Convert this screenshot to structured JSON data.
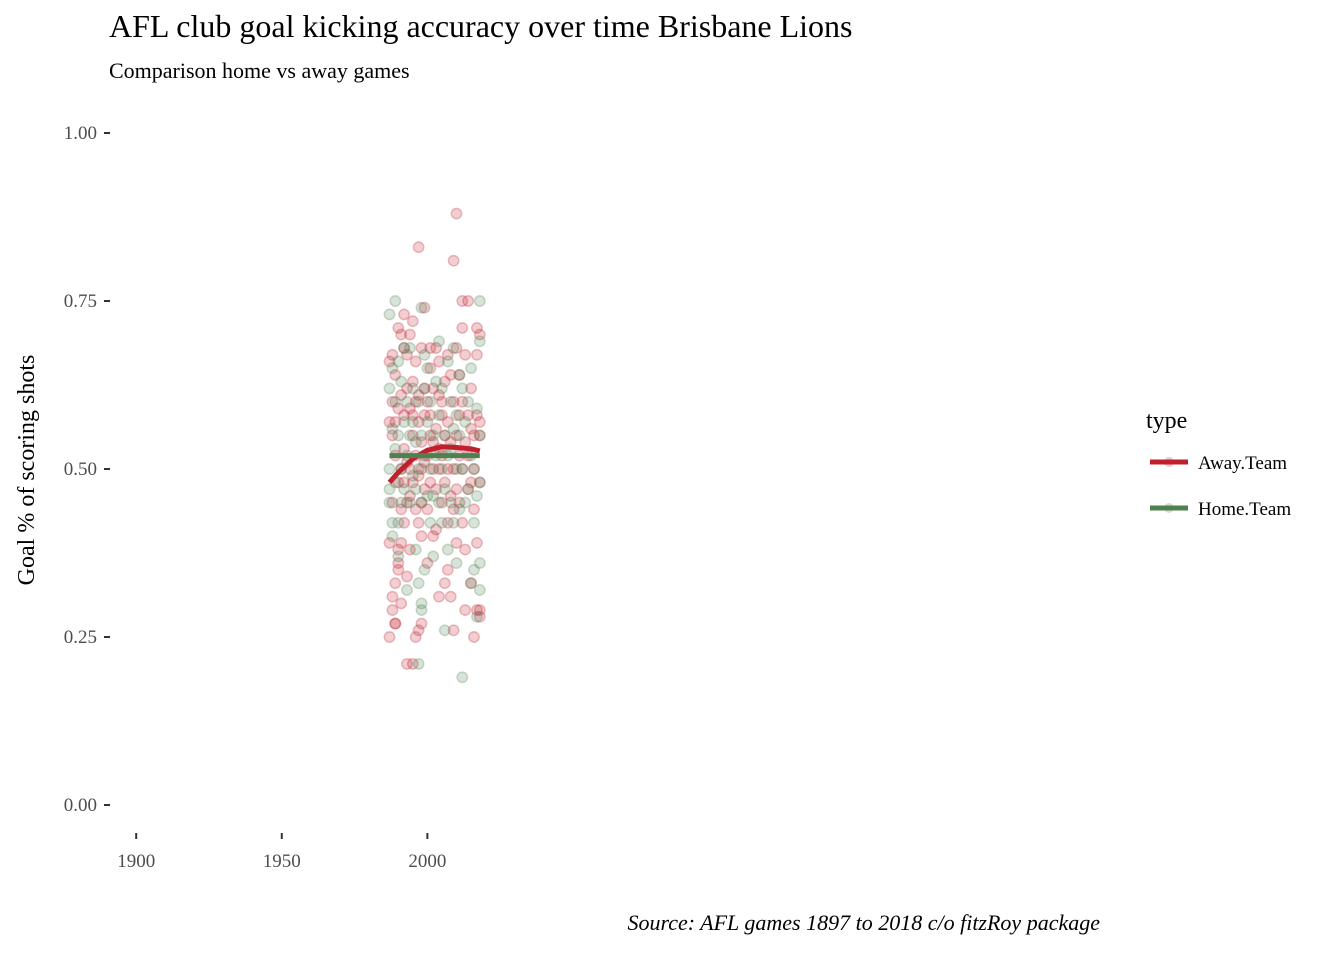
{
  "chart_data": {
    "type": "scatter",
    "title": "AFL club goal kicking accuracy over time Brisbane Lions",
    "subtitle": "Comparison home vs away games",
    "caption": "Source: AFL games 1897 to 2018 c/o fitzRoy package",
    "xlabel": "",
    "ylabel": "Goal % of scoring shots",
    "xlim": [
      1891,
      2242
    ],
    "ylim": [
      0,
      1
    ],
    "x_ticks": [
      1900,
      1950,
      2000
    ],
    "y_ticks": [
      {
        "value": 0.0,
        "label": "0.00"
      },
      {
        "value": 0.25,
        "label": "0.25"
      },
      {
        "value": 0.5,
        "label": "0.50"
      },
      {
        "value": 0.75,
        "label": "0.75"
      },
      {
        "value": 1.0,
        "label": "1.00"
      }
    ],
    "grid": false,
    "legend": {
      "title": "type",
      "position": "right"
    },
    "colors": {
      "away": "#c0202d",
      "home": "#4e8050",
      "tick": "#333333",
      "tick_text": "#4d4d4d"
    },
    "series": [
      {
        "name": "Away.Team",
        "color": "#c0202d",
        "points": [
          [
            1987,
            0.25
          ],
          [
            1987,
            0.39
          ],
          [
            1987,
            0.57
          ],
          [
            1987,
            0.66
          ],
          [
            1988,
            0.67
          ],
          [
            1988,
            0.31
          ],
          [
            1988,
            0.29
          ],
          [
            1988,
            0.6
          ],
          [
            1988,
            0.55
          ],
          [
            1988,
            0.45
          ],
          [
            1989,
            0.27
          ],
          [
            1989,
            0.33
          ],
          [
            1989,
            0.52
          ],
          [
            1989,
            0.64
          ],
          [
            1989,
            0.57
          ],
          [
            1989,
            0.27
          ],
          [
            1990,
            0.71
          ],
          [
            1990,
            0.48
          ],
          [
            1990,
            0.38
          ],
          [
            1990,
            0.59
          ],
          [
            1990,
            0.35
          ],
          [
            1990,
            0.36
          ],
          [
            1991,
            0.7
          ],
          [
            1991,
            0.5
          ],
          [
            1991,
            0.44
          ],
          [
            1991,
            0.61
          ],
          [
            1991,
            0.39
          ],
          [
            1991,
            0.3
          ],
          [
            1992,
            0.68
          ],
          [
            1992,
            0.58
          ],
          [
            1992,
            0.48
          ],
          [
            1992,
            0.42
          ],
          [
            1992,
            0.73
          ],
          [
            1992,
            0.53
          ],
          [
            1993,
            0.21
          ],
          [
            1993,
            0.62
          ],
          [
            1993,
            0.51
          ],
          [
            1993,
            0.45
          ],
          [
            1993,
            0.34
          ],
          [
            1993,
            0.67
          ],
          [
            1994,
            0.59
          ],
          [
            1994,
            0.5
          ],
          [
            1994,
            0.38
          ],
          [
            1994,
            0.7
          ],
          [
            1994,
            0.46
          ],
          [
            1995,
            0.72
          ],
          [
            1995,
            0.63
          ],
          [
            1995,
            0.55
          ],
          [
            1995,
            0.48
          ],
          [
            1995,
            0.21
          ],
          [
            1995,
            0.58
          ],
          [
            1996,
            0.25
          ],
          [
            1996,
            0.52
          ],
          [
            1996,
            0.66
          ],
          [
            1996,
            0.44
          ],
          [
            1996,
            0.6
          ],
          [
            1997,
            0.83
          ],
          [
            1997,
            0.26
          ],
          [
            1997,
            0.57
          ],
          [
            1997,
            0.49
          ],
          [
            1997,
            0.42
          ],
          [
            1997,
            0.61
          ],
          [
            1998,
            0.27
          ],
          [
            1998,
            0.68
          ],
          [
            1998,
            0.5
          ],
          [
            1998,
            0.54
          ],
          [
            1998,
            0.4
          ],
          [
            1998,
            0.45
          ],
          [
            1999,
            0.74
          ],
          [
            1999,
            0.62
          ],
          [
            1999,
            0.51
          ],
          [
            1999,
            0.47
          ],
          [
            1999,
            0.58
          ],
          [
            2000,
            0.6
          ],
          [
            2000,
            0.52
          ],
          [
            2000,
            0.44
          ],
          [
            2000,
            0.36
          ],
          [
            2001,
            0.65
          ],
          [
            2001,
            0.55
          ],
          [
            2001,
            0.48
          ],
          [
            2001,
            0.58
          ],
          [
            2001,
            0.68
          ],
          [
            2002,
            0.54
          ],
          [
            2002,
            0.4
          ],
          [
            2002,
            0.5
          ],
          [
            2002,
            0.62
          ],
          [
            2003,
            0.68
          ],
          [
            2003,
            0.56
          ],
          [
            2003,
            0.47
          ],
          [
            2003,
            0.41
          ],
          [
            2004,
            0.61
          ],
          [
            2004,
            0.5
          ],
          [
            2004,
            0.53
          ],
          [
            2004,
            0.31
          ],
          [
            2004,
            0.66
          ],
          [
            2005,
            0.58
          ],
          [
            2005,
            0.45
          ],
          [
            2005,
            0.52
          ],
          [
            2005,
            0.6
          ],
          [
            2006,
            0.63
          ],
          [
            2006,
            0.33
          ],
          [
            2006,
            0.55
          ],
          [
            2006,
            0.48
          ],
          [
            2007,
            0.35
          ],
          [
            2007,
            0.5
          ],
          [
            2007,
            0.57
          ],
          [
            2007,
            0.67
          ],
          [
            2007,
            0.42
          ],
          [
            2008,
            0.64
          ],
          [
            2008,
            0.31
          ],
          [
            2008,
            0.54
          ],
          [
            2008,
            0.46
          ],
          [
            2009,
            0.26
          ],
          [
            2009,
            0.81
          ],
          [
            2009,
            0.6
          ],
          [
            2009,
            0.5
          ],
          [
            2009,
            0.44
          ],
          [
            2010,
            0.88
          ],
          [
            2010,
            0.68
          ],
          [
            2010,
            0.55
          ],
          [
            2010,
            0.47
          ],
          [
            2010,
            0.39
          ],
          [
            2011,
            0.64
          ],
          [
            2011,
            0.52
          ],
          [
            2011,
            0.45
          ],
          [
            2011,
            0.58
          ],
          [
            2012,
            0.75
          ],
          [
            2012,
            0.71
          ],
          [
            2012,
            0.5
          ],
          [
            2012,
            0.6
          ],
          [
            2012,
            0.42
          ],
          [
            2013,
            0.29
          ],
          [
            2013,
            0.54
          ],
          [
            2013,
            0.38
          ],
          [
            2013,
            0.67
          ],
          [
            2014,
            0.75
          ],
          [
            2014,
            0.58
          ],
          [
            2014,
            0.47
          ],
          [
            2014,
            0.52
          ],
          [
            2015,
            0.33
          ],
          [
            2015,
            0.48
          ],
          [
            2015,
            0.56
          ],
          [
            2015,
            0.62
          ],
          [
            2016,
            0.25
          ],
          [
            2016,
            0.5
          ],
          [
            2016,
            0.44
          ],
          [
            2016,
            0.55
          ],
          [
            2017,
            0.71
          ],
          [
            2017,
            0.58
          ],
          [
            2017,
            0.29
          ],
          [
            2017,
            0.39
          ],
          [
            2017,
            0.67
          ],
          [
            2018,
            0.7
          ],
          [
            2018,
            0.57
          ],
          [
            2018,
            0.28
          ],
          [
            2018,
            0.29
          ],
          [
            2018,
            0.48
          ],
          [
            2018,
            0.55
          ]
        ],
        "trend": [
          [
            1987,
            0.48
          ],
          [
            1990,
            0.495
          ],
          [
            1995,
            0.515
          ],
          [
            2000,
            0.528
          ],
          [
            2005,
            0.533
          ],
          [
            2010,
            0.532
          ],
          [
            2015,
            0.53
          ],
          [
            2018,
            0.527
          ]
        ]
      },
      {
        "name": "Home.Team",
        "color": "#4e8050",
        "points": [
          [
            1987,
            0.73
          ],
          [
            1987,
            0.62
          ],
          [
            1987,
            0.47
          ],
          [
            1987,
            0.5
          ],
          [
            1987,
            0.45
          ],
          [
            1988,
            0.42
          ],
          [
            1988,
            0.56
          ],
          [
            1988,
            0.65
          ],
          [
            1988,
            0.4
          ],
          [
            1989,
            0.75
          ],
          [
            1989,
            0.48
          ],
          [
            1989,
            0.6
          ],
          [
            1989,
            0.53
          ],
          [
            1990,
            0.66
          ],
          [
            1990,
            0.42
          ],
          [
            1990,
            0.55
          ],
          [
            1990,
            0.37
          ],
          [
            1991,
            0.63
          ],
          [
            1991,
            0.5
          ],
          [
            1991,
            0.45
          ],
          [
            1992,
            0.57
          ],
          [
            1992,
            0.68
          ],
          [
            1992,
            0.47
          ],
          [
            1993,
            0.32
          ],
          [
            1993,
            0.6
          ],
          [
            1993,
            0.52
          ],
          [
            1994,
            0.55
          ],
          [
            1994,
            0.45
          ],
          [
            1994,
            0.68
          ],
          [
            1995,
            0.49
          ],
          [
            1995,
            0.57
          ],
          [
            1995,
            0.62
          ],
          [
            1996,
            0.38
          ],
          [
            1996,
            0.54
          ],
          [
            1996,
            0.47
          ],
          [
            1997,
            0.21
          ],
          [
            1997,
            0.33
          ],
          [
            1997,
            0.6
          ],
          [
            1997,
            0.5
          ],
          [
            1998,
            0.74
          ],
          [
            1998,
            0.3
          ],
          [
            1998,
            0.29
          ],
          [
            1998,
            0.45
          ],
          [
            1998,
            0.55
          ],
          [
            1999,
            0.67
          ],
          [
            1999,
            0.35
          ],
          [
            1999,
            0.52
          ],
          [
            1999,
            0.62
          ],
          [
            2000,
            0.65
          ],
          [
            2000,
            0.46
          ],
          [
            2000,
            0.57
          ],
          [
            2001,
            0.5
          ],
          [
            2001,
            0.42
          ],
          [
            2001,
            0.6
          ],
          [
            2002,
            0.46
          ],
          [
            2002,
            0.55
          ],
          [
            2002,
            0.37
          ],
          [
            2003,
            0.63
          ],
          [
            2003,
            0.52
          ],
          [
            2004,
            0.45
          ],
          [
            2004,
            0.58
          ],
          [
            2004,
            0.69
          ],
          [
            2005,
            0.5
          ],
          [
            2005,
            0.42
          ],
          [
            2005,
            0.62
          ],
          [
            2006,
            0.26
          ],
          [
            2006,
            0.55
          ],
          [
            2006,
            0.47
          ],
          [
            2007,
            0.66
          ],
          [
            2007,
            0.38
          ],
          [
            2007,
            0.52
          ],
          [
            2008,
            0.6
          ],
          [
            2008,
            0.45
          ],
          [
            2008,
            0.53
          ],
          [
            2009,
            0.56
          ],
          [
            2009,
            0.68
          ],
          [
            2009,
            0.42
          ],
          [
            2010,
            0.36
          ],
          [
            2010,
            0.5
          ],
          [
            2010,
            0.58
          ],
          [
            2011,
            0.64
          ],
          [
            2011,
            0.44
          ],
          [
            2011,
            0.55
          ],
          [
            2012,
            0.19
          ],
          [
            2012,
            0.62
          ],
          [
            2012,
            0.5
          ],
          [
            2013,
            0.45
          ],
          [
            2013,
            0.57
          ],
          [
            2014,
            0.47
          ],
          [
            2014,
            0.6
          ],
          [
            2015,
            0.33
          ],
          [
            2015,
            0.52
          ],
          [
            2015,
            0.65
          ],
          [
            2016,
            0.35
          ],
          [
            2016,
            0.5
          ],
          [
            2016,
            0.42
          ],
          [
            2017,
            0.28
          ],
          [
            2017,
            0.59
          ],
          [
            2017,
            0.46
          ],
          [
            2018,
            0.75
          ],
          [
            2018,
            0.69
          ],
          [
            2018,
            0.36
          ],
          [
            2018,
            0.32
          ],
          [
            2018,
            0.48
          ],
          [
            2018,
            0.55
          ]
        ],
        "trend": [
          [
            1987,
            0.52
          ],
          [
            2018,
            0.52
          ]
        ]
      }
    ]
  }
}
